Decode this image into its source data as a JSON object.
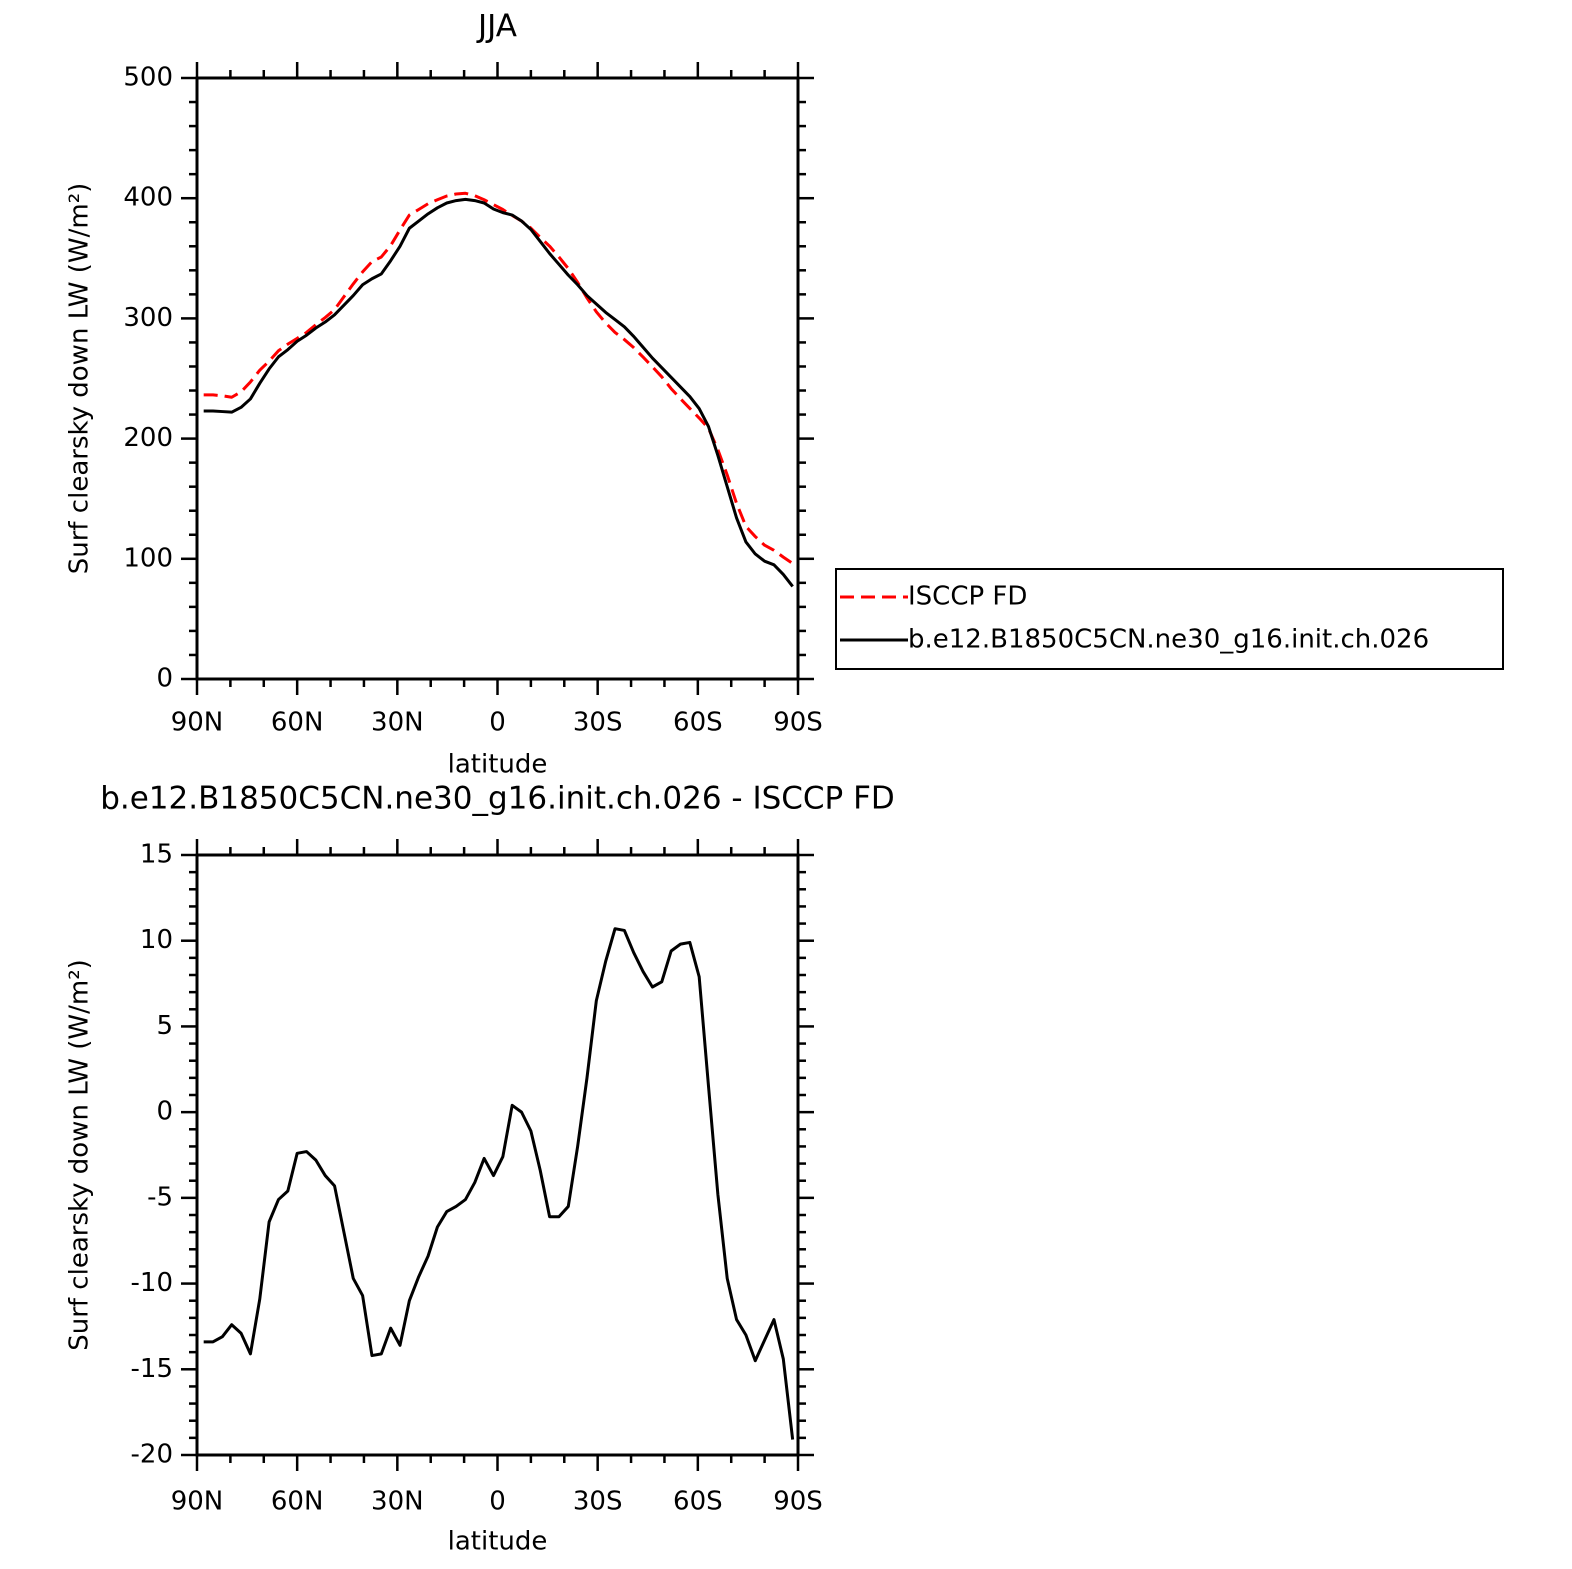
{
  "chart_data": [
    {
      "type": "line",
      "title": "JJA",
      "xlabel": "latitude",
      "ylabel": "Surf clearsky down LW (W/m²)",
      "x": [
        88.0,
        85.2,
        82.4,
        79.6,
        76.8,
        74.0,
        71.2,
        68.4,
        65.6,
        62.8,
        60.0,
        57.2,
        54.4,
        51.6,
        48.8,
        46.0,
        43.2,
        40.4,
        37.6,
        34.8,
        32.0,
        29.2,
        26.4,
        23.6,
        20.8,
        18.0,
        15.2,
        12.4,
        9.6,
        6.8,
        4.0,
        1.2,
        -1.6,
        -4.4,
        -7.2,
        -10.0,
        -12.8,
        -15.6,
        -18.4,
        -21.2,
        -24.0,
        -26.8,
        -29.6,
        -32.4,
        -35.2,
        -38.0,
        -40.8,
        -43.6,
        -46.4,
        -49.2,
        -52.0,
        -54.8,
        -57.6,
        -60.4,
        -63.2,
        -66.0,
        -68.8,
        -71.6,
        -74.4,
        -77.2,
        -80.0,
        -82.8,
        -85.6,
        -88.4
      ],
      "series": [
        {
          "name": "ISCCP FD",
          "color": "#ff0000",
          "style": "dashed",
          "values": [
            236.4,
            236.4,
            235.6,
            234.4,
            238.9,
            247.1,
            256.9,
            264.4,
            273.1,
            278.6,
            283.4,
            288.3,
            294.8,
            300.7,
            307.3,
            318.0,
            328.7,
            338.7,
            347.2,
            351.1,
            360.6,
            373.6,
            386.0,
            390.6,
            395.4,
            398.7,
            401.8,
            403.5,
            404.1,
            402.1,
            398.7,
            394.7,
            390.6,
            385.6,
            381.0,
            375.1,
            367.4,
            360.1,
            351.1,
            341.5,
            330.0,
            317.0,
            305.5,
            296.2,
            288.3,
            282.4,
            275.7,
            267.8,
            259.7,
            251.4,
            241.6,
            233.2,
            225.1,
            217.1,
            208.5,
            190.8,
            169.7,
            146.1,
            127.0,
            118.5,
            111.3,
            107.1,
            101.4,
            96.1
          ]
        },
        {
          "name": "b.e12.B1850C5CN.ne30_g16.init.ch.026",
          "color": "#000000",
          "style": "solid",
          "values": [
            223,
            223,
            222.5,
            222,
            226,
            233,
            246,
            258,
            268,
            274,
            281,
            286,
            292,
            297,
            303,
            311,
            319,
            328,
            333,
            337,
            348,
            360,
            375,
            381,
            387,
            392,
            396,
            398,
            399,
            398,
            396,
            391,
            388,
            386,
            381,
            374,
            364,
            354,
            345,
            336,
            328,
            319,
            312,
            305,
            299,
            293,
            285,
            276,
            267,
            259,
            251,
            243,
            235,
            225,
            210,
            186,
            160,
            134,
            114,
            104,
            98,
            95,
            87,
            77
          ]
        }
      ],
      "xlim": [
        90,
        -90
      ],
      "xticks": [
        {
          "value": 90,
          "label": "90N"
        },
        {
          "value": 60,
          "label": "60N"
        },
        {
          "value": 30,
          "label": "30N"
        },
        0,
        {
          "value": -30,
          "label": "30S"
        },
        {
          "value": -60,
          "label": "60S"
        },
        {
          "value": -90,
          "label": "90S"
        }
      ],
      "ylim": [
        0,
        500
      ],
      "yticks": [
        0,
        100,
        200,
        300,
        400,
        500
      ],
      "x_minor_divisions": 3,
      "y_minor_divisions": 5,
      "legend": "right"
    },
    {
      "type": "line",
      "title": "b.e12.B1850C5CN.ne30_g16.init.ch.026 - ISCCP FD",
      "xlabel": "latitude",
      "ylabel": "Surf clearsky down LW (W/m²)",
      "x": [
        88.0,
        85.2,
        82.4,
        79.6,
        76.8,
        74.0,
        71.2,
        68.4,
        65.6,
        62.8,
        60.0,
        57.2,
        54.4,
        51.6,
        48.8,
        46.0,
        43.2,
        40.4,
        37.6,
        34.8,
        32.0,
        29.2,
        26.4,
        23.6,
        20.8,
        18.0,
        15.2,
        12.4,
        9.6,
        6.8,
        4.0,
        1.2,
        -1.6,
        -4.4,
        -7.2,
        -10.0,
        -12.8,
        -15.6,
        -18.4,
        -21.2,
        -24.0,
        -26.8,
        -29.6,
        -32.4,
        -35.2,
        -38.0,
        -40.8,
        -43.6,
        -46.4,
        -49.2,
        -52.0,
        -54.8,
        -57.6,
        -60.4,
        -63.2,
        -66.0,
        -68.8,
        -71.6,
        -74.4,
        -77.2,
        -80.0,
        -82.8,
        -85.6,
        -88.4
      ],
      "series": [
        {
          "color": "#000000",
          "style": "solid",
          "values": [
            -13.4,
            -13.4,
            -13.1,
            -12.4,
            -12.9,
            -14.1,
            -10.9,
            -6.4,
            -5.1,
            -4.6,
            -2.4,
            -2.3,
            -2.8,
            -3.7,
            -4.3,
            -7.0,
            -9.7,
            -10.7,
            -14.2,
            -14.1,
            -12.6,
            -13.6,
            -11.0,
            -9.6,
            -8.4,
            -6.7,
            -5.8,
            -5.5,
            -5.1,
            -4.1,
            -2.7,
            -3.7,
            -2.6,
            0.4,
            0.0,
            -1.1,
            -3.4,
            -6.1,
            -6.1,
            -5.5,
            -2.0,
            2.0,
            6.5,
            8.8,
            10.7,
            10.6,
            9.3,
            8.2,
            7.3,
            7.6,
            9.4,
            9.8,
            9.9,
            7.9,
            1.5,
            -4.8,
            -9.7,
            -12.1,
            -13.0,
            -14.5,
            -13.3,
            -12.1,
            -14.4,
            -19.1
          ]
        }
      ],
      "xlim": [
        90,
        -90
      ],
      "xticks": [
        {
          "value": 90,
          "label": "90N"
        },
        {
          "value": 60,
          "label": "60N"
        },
        {
          "value": 30,
          "label": "30N"
        },
        0,
        {
          "value": -30,
          "label": "30S"
        },
        {
          "value": -60,
          "label": "60S"
        },
        {
          "value": -90,
          "label": "90S"
        }
      ],
      "ylim": [
        -20,
        15
      ],
      "yticks": [
        -20,
        -15,
        -10,
        -5,
        0,
        5,
        10,
        15
      ],
      "x_minor_divisions": 3,
      "y_minor_divisions": 5
    }
  ]
}
